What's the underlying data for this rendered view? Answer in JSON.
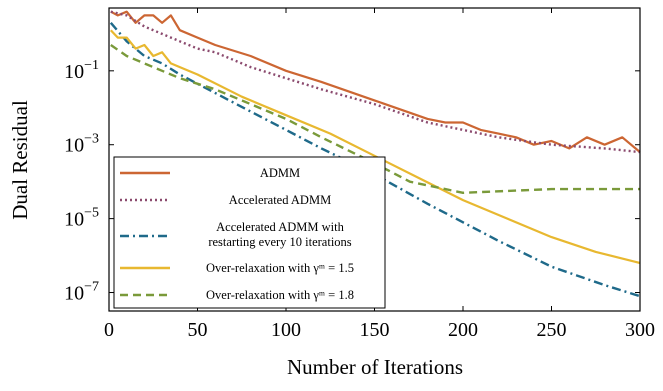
{
  "chart_data": {
    "type": "line",
    "xlabel": "Number of Iterations",
    "ylabel": "Dual Residual",
    "xlim": [
      0,
      300
    ],
    "ylim_log10": [
      -7.5,
      0.7
    ],
    "yscale": "log",
    "x_ticks": [
      0,
      50,
      100,
      150,
      200,
      250,
      300
    ],
    "y_ticks": [
      {
        "exp": -1,
        "base": "10",
        "power": "−1"
      },
      {
        "exp": -3,
        "base": "10",
        "power": "−3"
      },
      {
        "exp": -5,
        "base": "10",
        "power": "−5"
      },
      {
        "exp": -7,
        "base": "10",
        "power": "−7"
      }
    ],
    "grid": false,
    "legend_position": "bottom-left",
    "series": [
      {
        "name": "ADMM",
        "color": "#cc6633",
        "style": "solid",
        "x": [
          1,
          5,
          10,
          15,
          20,
          25,
          30,
          35,
          40,
          50,
          60,
          80,
          100,
          120,
          150,
          180,
          190,
          200,
          210,
          220,
          230,
          240,
          250,
          260,
          270,
          280,
          290,
          300
        ],
        "log10": [
          0.6,
          0.5,
          0.6,
          0.3,
          0.5,
          0.5,
          0.3,
          0.5,
          0.1,
          -0.1,
          -0.3,
          -0.6,
          -1.0,
          -1.3,
          -1.8,
          -2.3,
          -2.4,
          -2.4,
          -2.6,
          -2.7,
          -2.8,
          -3.0,
          -2.9,
          -3.1,
          -2.8,
          -3.0,
          -2.8,
          -3.2
        ]
      },
      {
        "name": "Accelerated ADMM",
        "color": "#8b4a6e",
        "style": "dotted",
        "x": [
          1,
          10,
          20,
          30,
          40,
          50,
          60,
          80,
          100,
          120,
          150,
          180,
          200,
          220,
          250,
          280,
          300
        ],
        "log10": [
          0.6,
          0.5,
          0.2,
          0.0,
          -0.2,
          -0.4,
          -0.5,
          -0.9,
          -1.2,
          -1.5,
          -1.9,
          -2.4,
          -2.6,
          -2.8,
          -3.0,
          -3.1,
          -3.2
        ]
      },
      {
        "name": "Accelerated ADMM with restarting every 10 iterations",
        "color": "#1f6a8a",
        "style": "dashdot",
        "x": [
          1,
          10,
          20,
          30,
          40,
          60,
          80,
          100,
          120,
          150,
          180,
          200,
          220,
          250,
          280,
          300
        ],
        "log10": [
          0.3,
          -0.2,
          -0.6,
          -0.8,
          -1.1,
          -1.6,
          -2.1,
          -2.6,
          -3.1,
          -3.8,
          -4.6,
          -5.1,
          -5.6,
          -6.3,
          -6.8,
          -7.1
        ]
      },
      {
        "name": "Over-relaxation with γᵐ = 1.5",
        "color": "#e8b830",
        "style": "solid",
        "x": [
          1,
          5,
          10,
          15,
          20,
          25,
          30,
          35,
          40,
          50,
          75,
          100,
          125,
          150,
          175,
          200,
          225,
          250,
          275,
          300
        ],
        "log10": [
          0.1,
          -0.1,
          -0.1,
          -0.4,
          -0.3,
          -0.6,
          -0.5,
          -0.8,
          -0.9,
          -1.1,
          -1.7,
          -2.2,
          -2.7,
          -3.3,
          -3.9,
          -4.5,
          -5.0,
          -5.5,
          -5.9,
          -6.2
        ]
      },
      {
        "name": "Over-relaxation with γᵐ = 1.8",
        "color": "#7a9a3a",
        "style": "dashed",
        "x": [
          1,
          10,
          20,
          30,
          40,
          60,
          80,
          100,
          120,
          150,
          170,
          200,
          250,
          300
        ],
        "log10": [
          -0.3,
          -0.6,
          -0.8,
          -1.0,
          -1.2,
          -1.5,
          -1.9,
          -2.3,
          -2.8,
          -3.5,
          -4.0,
          -4.3,
          -4.2,
          -4.2
        ]
      }
    ]
  },
  "legend": {
    "items": [
      {
        "line1": "ADMM",
        "line2": "",
        "color": "#cc6633",
        "style": "solid"
      },
      {
        "line1": "Accelerated ADMM",
        "line2": "",
        "color": "#8b4a6e",
        "style": "dotted"
      },
      {
        "line1": "Accelerated ADMM with",
        "line2": "restarting every 10 iterations",
        "color": "#1f6a8a",
        "style": "dashdot"
      },
      {
        "line1": "Over-relaxation with γᵐ = 1.5",
        "line2": "",
        "color": "#e8b830",
        "style": "solid"
      },
      {
        "line1": "Over-relaxation with γᵐ = 1.8",
        "line2": "",
        "color": "#7a9a3a",
        "style": "dashed"
      }
    ]
  }
}
